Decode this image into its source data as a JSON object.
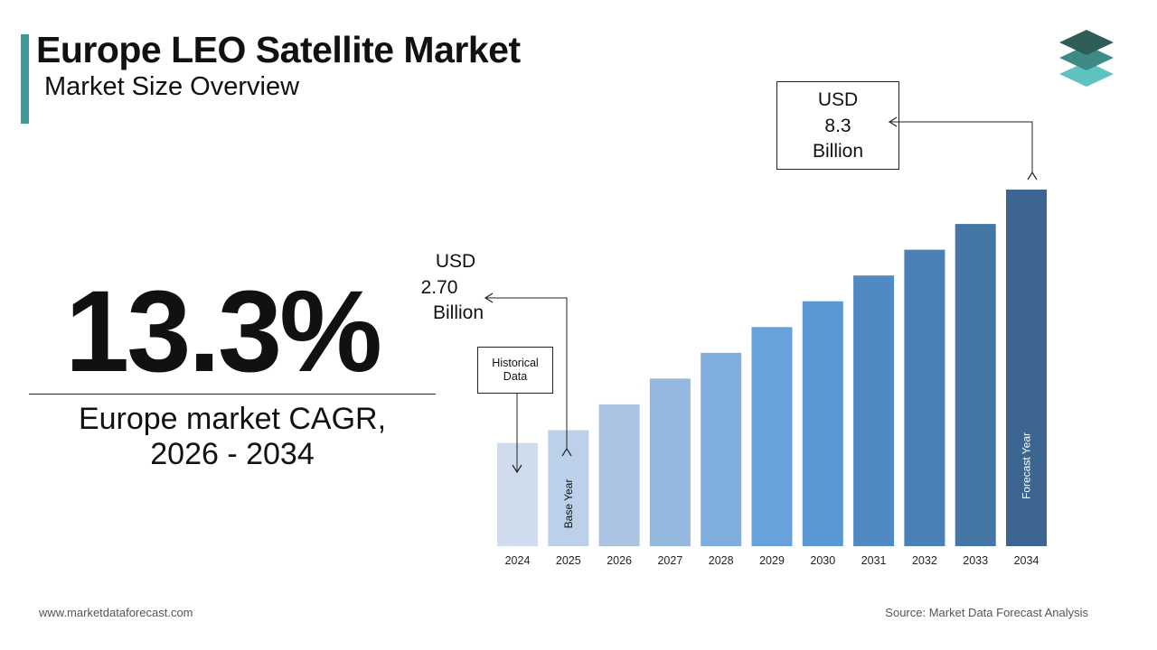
{
  "header": {
    "title": "Europe LEO Satellite Market",
    "subtitle": "Market Size Overview"
  },
  "highlight": {
    "cagr": "13.3%",
    "label_line1": "Europe market CAGR,",
    "label_line2": "2026 - 2034"
  },
  "footer": {
    "website": "www.marketdataforecast.com",
    "source": "Source: Market Data Forecast Analysis"
  },
  "colors": {
    "accent": "#3d9a9a",
    "logo_top": "#2f5d58",
    "logo_mid": "#3f8a86",
    "logo_bottom": "#5ec3c0"
  },
  "chart_data": {
    "type": "bar",
    "categories": [
      "2024",
      "2025",
      "2026",
      "2027",
      "2028",
      "2029",
      "2030",
      "2031",
      "2032",
      "2033",
      "2034"
    ],
    "values": [
      2.4,
      2.7,
      3.3,
      3.9,
      4.5,
      5.1,
      5.7,
      6.3,
      6.9,
      7.5,
      8.3
    ],
    "colors": [
      "#cfdcee",
      "#bdd0e9",
      "#aac3e3",
      "#94b8de",
      "#7eadde",
      "#69a2da",
      "#5a98d5",
      "#5189c2",
      "#4a80b6",
      "#4476a6",
      "#3c6690"
    ],
    "ylim": [
      0,
      8.3
    ],
    "grid": false,
    "bar_labels": [
      {
        "index": 1,
        "text": "Base Year"
      },
      {
        "index": 10,
        "text": "Forecast Year"
      }
    ],
    "annotations": {
      "start": {
        "line1": "USD",
        "line2": "2.70",
        "line3": "Billion"
      },
      "end": {
        "line1": "USD",
        "line2": "8.3",
        "line3": "Billion"
      },
      "historical": {
        "line1": "Historical",
        "line2": "Data"
      }
    }
  }
}
